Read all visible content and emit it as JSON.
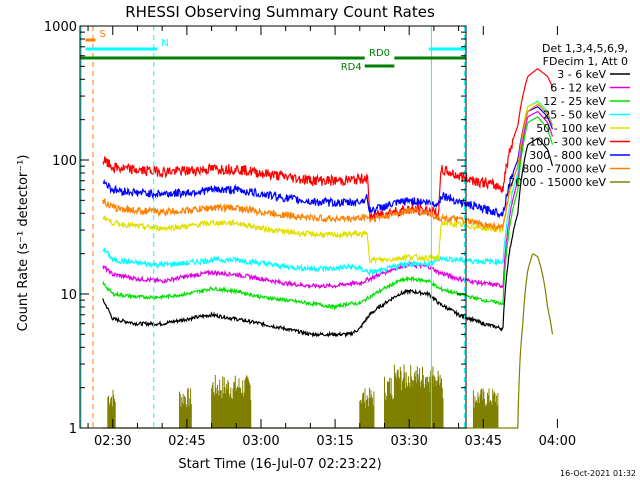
{
  "chart_data": {
    "type": "line",
    "title": "RHESSI Observing Summary Count Rates",
    "xlabel": "Start Time (16-Jul-07 02:23:22)",
    "ylabel": "Count Rate (s⁻¹ detector⁻¹)",
    "ylog": true,
    "ylim": [
      1,
      1000
    ],
    "xlim_minutes": [
      23.37,
      101.5
    ],
    "x_ticks": [
      {
        "m": 30,
        "label": "02:30"
      },
      {
        "m": 45,
        "label": "02:45"
      },
      {
        "m": 60,
        "label": "03:00"
      },
      {
        "m": 75,
        "label": "03:15"
      },
      {
        "m": 90,
        "label": "03:30"
      },
      {
        "m": 105,
        "label": "03:45"
      },
      {
        "m": 120,
        "label": "04:00"
      }
    ],
    "y_ticks": [
      {
        "v": 1,
        "label": "1"
      },
      {
        "v": 10,
        "label": "10"
      },
      {
        "v": 100,
        "label": "100"
      },
      {
        "v": 1000,
        "label": "1000"
      }
    ],
    "legend_header": [
      "Det 1,3,4,5,6,9,",
      "FDecim 1, Att 0"
    ],
    "series": [
      {
        "name": "3 - 6 keV",
        "color": "#000000",
        "noise": 0.5,
        "points": [
          [
            28,
            9
          ],
          [
            30,
            6.5
          ],
          [
            35,
            6
          ],
          [
            40,
            6
          ],
          [
            45,
            6.5
          ],
          [
            50,
            7
          ],
          [
            55,
            6.5
          ],
          [
            60,
            6
          ],
          [
            65,
            5.5
          ],
          [
            70,
            5
          ],
          [
            75,
            5
          ],
          [
            78,
            5
          ],
          [
            80,
            5.5
          ],
          [
            82,
            7
          ],
          [
            85,
            8.5
          ],
          [
            88,
            10
          ],
          [
            90,
            10.5
          ],
          [
            94,
            10
          ],
          [
            96,
            8.5
          ],
          [
            100,
            7
          ],
          [
            105,
            6
          ],
          [
            109,
            5.5
          ],
          [
            112,
            40
          ],
          [
            114,
            130
          ],
          [
            116,
            145
          ],
          [
            118,
            120
          ],
          [
            119,
            90
          ]
        ]
      },
      {
        "name": "6 - 12 keV",
        "color": "#e000e0",
        "noise": 0.6,
        "points": [
          [
            28,
            16
          ],
          [
            30,
            14
          ],
          [
            35,
            13
          ],
          [
            40,
            12.5
          ],
          [
            45,
            13.5
          ],
          [
            50,
            14.5
          ],
          [
            55,
            14
          ],
          [
            60,
            13
          ],
          [
            65,
            12
          ],
          [
            70,
            11.5
          ],
          [
            75,
            11.5
          ],
          [
            78,
            12
          ],
          [
            80,
            12
          ],
          [
            82,
            13
          ],
          [
            85,
            14.5
          ],
          [
            88,
            16
          ],
          [
            90,
            16.5
          ],
          [
            94,
            16
          ],
          [
            96,
            14.5
          ],
          [
            100,
            13
          ],
          [
            105,
            12
          ],
          [
            109,
            11.5
          ],
          [
            112,
            70
          ],
          [
            114,
            210
          ],
          [
            116,
            230
          ],
          [
            118,
            190
          ],
          [
            119,
            150
          ]
        ]
      },
      {
        "name": "12 - 25 keV",
        "color": "#00e000",
        "noise": 0.5,
        "points": [
          [
            28,
            12
          ],
          [
            30,
            10
          ],
          [
            35,
            9.5
          ],
          [
            40,
            9.5
          ],
          [
            45,
            10
          ],
          [
            50,
            11
          ],
          [
            55,
            10.5
          ],
          [
            60,
            9.5
          ],
          [
            65,
            9
          ],
          [
            70,
            8.5
          ],
          [
            75,
            8
          ],
          [
            78,
            8.5
          ],
          [
            80,
            8.5
          ],
          [
            82,
            9.5
          ],
          [
            85,
            11
          ],
          [
            88,
            12.5
          ],
          [
            90,
            13
          ],
          [
            94,
            12.5
          ],
          [
            96,
            11
          ],
          [
            100,
            10
          ],
          [
            105,
            9
          ],
          [
            109,
            8.5
          ],
          [
            112,
            60
          ],
          [
            114,
            190
          ],
          [
            116,
            210
          ],
          [
            118,
            170
          ],
          [
            119,
            130
          ]
        ]
      },
      {
        "name": "25 - 50 keV",
        "color": "#00ffff",
        "noise": 0.8,
        "points": [
          [
            28,
            22
          ],
          [
            30,
            18
          ],
          [
            35,
            17
          ],
          [
            40,
            16.5
          ],
          [
            45,
            17
          ],
          [
            50,
            18
          ],
          [
            55,
            18
          ],
          [
            60,
            17
          ],
          [
            65,
            16
          ],
          [
            70,
            15.5
          ],
          [
            75,
            15.5
          ],
          [
            78,
            16
          ],
          [
            80,
            15.5
          ],
          [
            82,
            14.5
          ],
          [
            85,
            15
          ],
          [
            88,
            16.5
          ],
          [
            90,
            17
          ],
          [
            94,
            16.5
          ],
          [
            96,
            18.5
          ],
          [
            100,
            18
          ],
          [
            105,
            17.5
          ],
          [
            109,
            17.5
          ],
          [
            112,
            80
          ],
          [
            114,
            250
          ],
          [
            116,
            275
          ],
          [
            118,
            230
          ],
          [
            119,
            180
          ]
        ]
      },
      {
        "name": "50 - 100 keV",
        "color": "#e0e000",
        "noise": 0.8,
        "points": [
          [
            28,
            38
          ],
          [
            30,
            34
          ],
          [
            35,
            32
          ],
          [
            40,
            31
          ],
          [
            45,
            32
          ],
          [
            50,
            34
          ],
          [
            55,
            34
          ],
          [
            60,
            31
          ],
          [
            65,
            29
          ],
          [
            70,
            28
          ],
          [
            75,
            27.5
          ],
          [
            78,
            28
          ],
          [
            80,
            28
          ],
          [
            81.5,
            28
          ],
          [
            82,
            18
          ],
          [
            85,
            18
          ],
          [
            88,
            18.5
          ],
          [
            90,
            19
          ],
          [
            94,
            18.5
          ],
          [
            96,
            18.5
          ],
          [
            96.5,
            34
          ],
          [
            100,
            33
          ],
          [
            105,
            31
          ],
          [
            109,
            30
          ],
          [
            112,
            90
          ],
          [
            114,
            250
          ],
          [
            116,
            270
          ],
          [
            118,
            220
          ],
          [
            119,
            180
          ]
        ]
      },
      {
        "name": "100 - 300 keV",
        "color": "#ff0000",
        "noise": 1.5,
        "points": [
          [
            28,
            100
          ],
          [
            30,
            88
          ],
          [
            35,
            84
          ],
          [
            40,
            82
          ],
          [
            45,
            83
          ],
          [
            50,
            86
          ],
          [
            55,
            86
          ],
          [
            60,
            80
          ],
          [
            65,
            75
          ],
          [
            70,
            71
          ],
          [
            75,
            70
          ],
          [
            78,
            71
          ],
          [
            80,
            72
          ],
          [
            81.5,
            75
          ],
          [
            82,
            38
          ],
          [
            85,
            40
          ],
          [
            88,
            42
          ],
          [
            90,
            43
          ],
          [
            94,
            42
          ],
          [
            96,
            40
          ],
          [
            96.5,
            85
          ],
          [
            100,
            76
          ],
          [
            105,
            68
          ],
          [
            109,
            62
          ],
          [
            112,
            180
          ],
          [
            114,
            420
          ],
          [
            116,
            480
          ],
          [
            118,
            420
          ],
          [
            119,
            350
          ]
        ]
      },
      {
        "name": "300 - 800 keV",
        "color": "#0000ff",
        "noise": 1.2,
        "points": [
          [
            28,
            70
          ],
          [
            30,
            60
          ],
          [
            35,
            57
          ],
          [
            40,
            56
          ],
          [
            45,
            57
          ],
          [
            50,
            60
          ],
          [
            55,
            60
          ],
          [
            60,
            56
          ],
          [
            65,
            52
          ],
          [
            70,
            49
          ],
          [
            75,
            48
          ],
          [
            78,
            48
          ],
          [
            80,
            49
          ],
          [
            81.5,
            52
          ],
          [
            82,
            42
          ],
          [
            85,
            45
          ],
          [
            88,
            48
          ],
          [
            90,
            50
          ],
          [
            94,
            48
          ],
          [
            96,
            47
          ],
          [
            96.5,
            55
          ],
          [
            100,
            49
          ],
          [
            105,
            43
          ],
          [
            109,
            40
          ],
          [
            112,
            100
          ],
          [
            114,
            230
          ],
          [
            116,
            250
          ],
          [
            118,
            210
          ],
          [
            119,
            170
          ]
        ]
      },
      {
        "name": "800 - 7000 keV",
        "color": "#ff8000",
        "noise": 1.0,
        "points": [
          [
            28,
            50
          ],
          [
            30,
            44
          ],
          [
            35,
            42
          ],
          [
            40,
            41
          ],
          [
            45,
            42
          ],
          [
            50,
            44
          ],
          [
            55,
            44
          ],
          [
            60,
            41
          ],
          [
            65,
            39
          ],
          [
            70,
            37
          ],
          [
            75,
            36.5
          ],
          [
            78,
            36.5
          ],
          [
            80,
            37
          ],
          [
            81.5,
            38
          ],
          [
            82,
            36
          ],
          [
            85,
            38
          ],
          [
            88,
            40.5
          ],
          [
            90,
            42
          ],
          [
            94,
            40
          ],
          [
            96,
            37
          ],
          [
            100,
            36
          ],
          [
            105,
            33
          ],
          [
            109,
            31
          ],
          [
            112,
            90
          ],
          [
            114,
            230
          ],
          [
            116,
            260
          ],
          [
            118,
            220
          ],
          [
            119,
            180
          ]
        ]
      },
      {
        "name": "7000 - 15000 keV",
        "color": "#808000",
        "noise": 0,
        "points": [
          [
            28,
            1
          ],
          [
            112,
            1
          ],
          [
            113,
            6
          ],
          [
            114,
            15
          ],
          [
            115,
            20
          ],
          [
            116,
            19
          ],
          [
            117,
            14
          ],
          [
            118,
            8
          ],
          [
            119,
            5
          ]
        ]
      }
    ],
    "bursts_7000_15000": [
      {
        "from": 29,
        "to": 30.5,
        "level": 2
      },
      {
        "from": 43.5,
        "to": 46,
        "level": 2
      },
      {
        "from": 50,
        "to": 58,
        "level": 2.5
      },
      {
        "from": 80,
        "to": 83,
        "level": 2
      },
      {
        "from": 85,
        "to": 97,
        "level": 2.5
      },
      {
        "from": 87,
        "to": 96,
        "level": 3
      },
      {
        "from": 103,
        "to": 108,
        "level": 2
      }
    ],
    "state_bars": [
      {
        "label": "S",
        "color": "#ff8000",
        "from": 24.5,
        "to": 26.5,
        "row": 1,
        "label_pos": "above-right"
      },
      {
        "label": "N",
        "color": "#00ffff",
        "from": 24.5,
        "to": 39,
        "row": 2,
        "label_pos": "above-right"
      },
      {
        "label": "N",
        "color": "#00ffff",
        "from": 94,
        "to": 101.5,
        "row": 2,
        "label_pos": "none"
      },
      {
        "label": "RD0",
        "color": "#008000",
        "from": 23.37,
        "to": 81,
        "row": 3,
        "label_pos": "none"
      },
      {
        "label": "RD0",
        "color": "#008000",
        "from": 87,
        "to": 101.5,
        "row": 3,
        "label_pos": "none"
      },
      {
        "label": "RD4",
        "color": "#008000",
        "from": 81,
        "to": 87,
        "row": 4,
        "label_pos": "left"
      }
    ],
    "state_labels": [
      {
        "text": "RD0",
        "color": "#008000",
        "at": 84,
        "row": 3,
        "place": "above"
      }
    ],
    "vertical_markers": [
      {
        "m": 23.6,
        "color": "#00ffff",
        "style": "solid"
      },
      {
        "m": 26,
        "color": "#ff8000",
        "style": "dashed"
      },
      {
        "m": 38.3,
        "color": "#00ffff",
        "style": "dashed"
      },
      {
        "m": 94.5,
        "color": "#00ffff",
        "style": "solid"
      },
      {
        "m": 101.2,
        "color": "#00ffff",
        "style": "dashed"
      }
    ]
  },
  "timestamp": "16-Oct-2021 01:32"
}
